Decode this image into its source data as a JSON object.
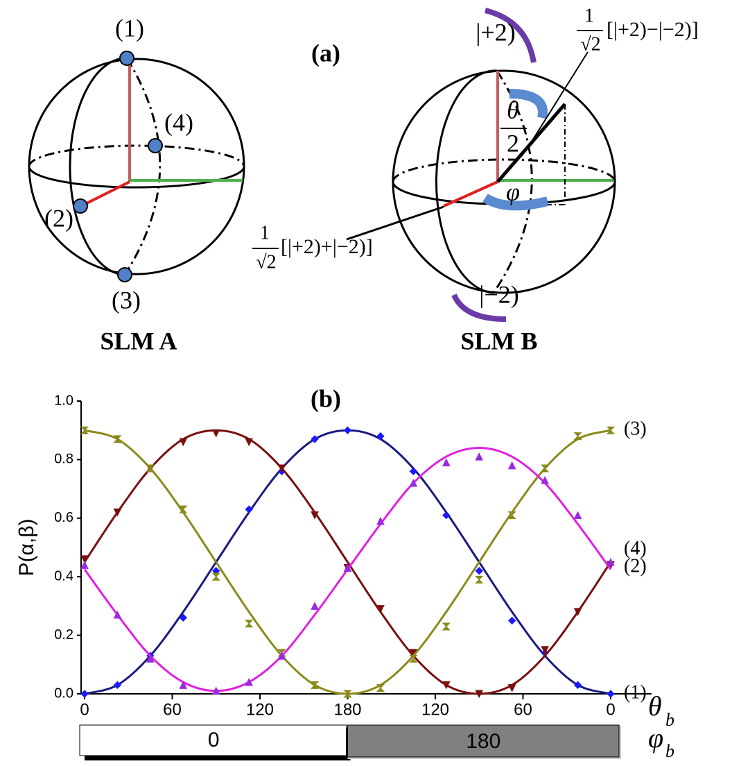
{
  "diagram": {
    "panel_a": "(a)",
    "sphere_a": {
      "title": "SLM A",
      "points": [
        "(1)",
        "(2)",
        "(3)",
        "(4)"
      ]
    },
    "sphere_b": {
      "title": "SLM B",
      "north": "|+2)",
      "south": "|−2)",
      "theta": "θ",
      "half": "2",
      "phi": "φ",
      "ket_plus": {
        "num": "1",
        "den": "√2",
        "body": "[|+2)+|−2)]"
      },
      "ket_minus": {
        "num": "1",
        "den": "√2",
        "body": "[|+2)−|−2)]"
      }
    }
  },
  "chart_data": {
    "type": "line",
    "title": "(b)",
    "y_label": "P(α,β)",
    "x_label": "θ",
    "x_label_sub": "b",
    "phi_label": "φ",
    "phi_label_sub": "b",
    "phi_segments": [
      "0",
      "180"
    ],
    "x": [
      0,
      22.5,
      45,
      67.5,
      90,
      112.5,
      135,
      157.5,
      180,
      202.5,
      225,
      247.5,
      270,
      292.5,
      315,
      337.5,
      360
    ],
    "xlim": [
      0,
      360
    ],
    "xticks": [
      0,
      60,
      120,
      180,
      {
        "value": 240,
        "label": "120"
      },
      {
        "value": 300,
        "label": "60"
      },
      {
        "value": 360,
        "label": "0"
      }
    ],
    "ylim": [
      0,
      1
    ],
    "yticks": [
      {
        "value": 0,
        "label": "0.0"
      },
      0.2,
      0.4,
      0.6,
      0.8,
      {
        "value": 1,
        "label": "1.0"
      }
    ],
    "series": [
      {
        "name": "(1)",
        "color": "#1a1aff",
        "line_color": "#1a1a80",
        "values": [
          0,
          0.03,
          0.13,
          0.26,
          0.42,
          0.63,
          0.76,
          0.87,
          0.9,
          0.88,
          0.76,
          0.61,
          0.42,
          0.25,
          0.14,
          0.03,
          0
        ],
        "fit": [
          0,
          0.03,
          0.13,
          0.28,
          0.45,
          0.62,
          0.77,
          0.87,
          0.9,
          0.87,
          0.77,
          0.62,
          0.45,
          0.28,
          0.13,
          0.03,
          0
        ]
      },
      {
        "name": "(2)",
        "color": "#7a0f0f",
        "line_color": "#7a0f0f",
        "values": [
          0.46,
          0.62,
          0.77,
          0.86,
          0.89,
          0.86,
          0.77,
          0.61,
          0.43,
          0.29,
          0.14,
          0.03,
          0,
          0.02,
          0.15,
          0.28,
          0.44
        ],
        "fit": [
          0.45,
          0.62,
          0.77,
          0.87,
          0.9,
          0.87,
          0.77,
          0.62,
          0.45,
          0.28,
          0.13,
          0.03,
          0,
          0.03,
          0.13,
          0.28,
          0.45
        ]
      },
      {
        "name": "(3)",
        "color": "#8a8a1a",
        "line_color": "#8a8a1a",
        "values": [
          0.9,
          0.87,
          0.77,
          0.63,
          0.4,
          0.24,
          0.14,
          0.03,
          0,
          0.02,
          0.12,
          0.23,
          0.39,
          0.61,
          0.77,
          0.88,
          0.9
        ],
        "fit": [
          0.9,
          0.87,
          0.77,
          0.62,
          0.45,
          0.28,
          0.13,
          0.03,
          0,
          0.03,
          0.13,
          0.28,
          0.45,
          0.62,
          0.77,
          0.87,
          0.9
        ]
      },
      {
        "name": "(4)",
        "color": "#9a2ae0",
        "line_color": "#e020e0",
        "values": [
          0.44,
          0.27,
          0.12,
          0.03,
          0.01,
          0.04,
          0.13,
          0.3,
          0.43,
          0.59,
          0.72,
          0.79,
          0.81,
          0.78,
          0.73,
          0.61,
          0.45
        ],
        "fit": [
          0.425,
          0.27,
          0.13,
          0.04,
          0.01,
          0.04,
          0.13,
          0.27,
          0.425,
          0.58,
          0.72,
          0.81,
          0.84,
          0.81,
          0.72,
          0.58,
          0.425
        ]
      }
    ]
  }
}
